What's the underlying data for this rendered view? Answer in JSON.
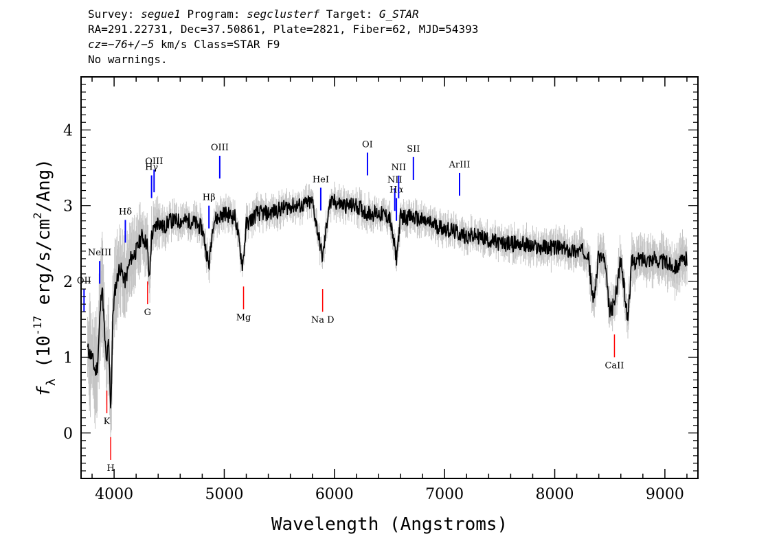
{
  "header": {
    "line1": {
      "survey_label": "Survey: ",
      "survey": "segue1",
      "program_label": " Program: ",
      "program": "segclusterf",
      "target_label": " Target: ",
      "target": "G_STAR"
    },
    "line2": "RA=291.22731, Dec=37.50861, Plate=2821, Fiber=62, MJD=54393",
    "line3": {
      "cz": "cz=−76+/−5",
      "rest": " km/s Class=STAR F9"
    },
    "line4": "No warnings."
  },
  "chart_data": {
    "type": "line",
    "title": "",
    "xlabel": "Wavelength (Angstroms)",
    "ylabel": "f_λ (10^-17 erg/s/cm²/Ang)",
    "xlim": [
      3700,
      9300
    ],
    "ylim": [
      -0.6,
      4.7
    ],
    "x_ticks": [
      4000,
      5000,
      6000,
      7000,
      8000,
      9000
    ],
    "y_ticks": [
      0,
      1,
      2,
      3,
      4
    ],
    "colors": {
      "flux": "#000000",
      "error_band": "#c4c4c4",
      "emission": "#0000ff",
      "absorption": "#ff0000"
    },
    "series": [
      {
        "name": "flux",
        "x": [
          3760,
          3800,
          3830,
          3850,
          3870,
          3890,
          3910,
          3930,
          3950,
          3970,
          3990,
          4010,
          4050,
          4100,
          4150,
          4200,
          4250,
          4300,
          4320,
          4340,
          4400,
          4450,
          4500,
          4600,
          4700,
          4800,
          4861,
          4900,
          5000,
          5100,
          5167,
          5200,
          5300,
          5400,
          5500,
          5600,
          5700,
          5800,
          5893,
          5950,
          6000,
          6100,
          6200,
          6300,
          6400,
          6500,
          6563,
          6600,
          6700,
          6800,
          6900,
          7000,
          7100,
          7200,
          7300,
          7400,
          7500,
          7600,
          7700,
          7800,
          7900,
          8000,
          8100,
          8200,
          8300,
          8350,
          8400,
          8450,
          8498,
          8542,
          8600,
          8662,
          8700,
          8800,
          8900,
          9000,
          9100,
          9200
        ],
        "y": [
          1.1,
          1.0,
          0.8,
          0.9,
          1.5,
          2.0,
          1.4,
          0.9,
          1.2,
          0.3,
          1.6,
          1.9,
          2.2,
          2.0,
          2.3,
          2.4,
          2.6,
          2.5,
          2.0,
          2.6,
          2.8,
          2.7,
          2.8,
          2.8,
          2.8,
          2.7,
          2.2,
          2.8,
          2.9,
          2.85,
          2.2,
          2.75,
          2.9,
          2.9,
          2.95,
          3.0,
          3.0,
          3.05,
          2.3,
          3.0,
          3.05,
          3.0,
          3.0,
          2.9,
          2.9,
          2.85,
          2.3,
          2.85,
          2.85,
          2.8,
          2.75,
          2.7,
          2.65,
          2.6,
          2.6,
          2.55,
          2.5,
          2.5,
          2.5,
          2.45,
          2.45,
          2.45,
          2.42,
          2.4,
          2.4,
          1.7,
          2.35,
          2.3,
          1.6,
          1.7,
          2.3,
          1.5,
          2.25,
          2.3,
          2.3,
          2.25,
          2.2,
          2.3
        ]
      },
      {
        "name": "error",
        "x": [
          3760,
          4000,
          4500,
          5000,
          5500,
          6000,
          6500,
          7000,
          7500,
          8000,
          8500,
          9000,
          9200
        ],
        "y": [
          0.45,
          0.35,
          0.12,
          0.1,
          0.1,
          0.1,
          0.1,
          0.1,
          0.1,
          0.12,
          0.15,
          0.18,
          0.2
        ]
      }
    ],
    "annotations": [
      {
        "label": "Hγ",
        "x": 4340,
        "type": "emission"
      },
      {
        "label": "Hδ",
        "x": 4102,
        "type": "emission"
      },
      {
        "label": "NeIII",
        "x": 3869,
        "type": "emission"
      },
      {
        "label": "OII",
        "x": 3727,
        "type": "emission"
      },
      {
        "label": "OIII",
        "x": 4363,
        "type": "emission"
      },
      {
        "label": "Hβ",
        "x": 4861,
        "type": "emission"
      },
      {
        "label": "OIII",
        "x": 4959,
        "type": "emission"
      },
      {
        "label": "HeI",
        "x": 5876,
        "type": "emission"
      },
      {
        "label": "OI",
        "x": 6300,
        "type": "emission"
      },
      {
        "label": "NII",
        "x": 6548,
        "type": "emission"
      },
      {
        "label": "Hα",
        "x": 6563,
        "type": "emission"
      },
      {
        "label": "NII",
        "x": 6583,
        "type": "emission"
      },
      {
        "label": "SII",
        "x": 6717,
        "type": "emission"
      },
      {
        "label": "ArIII",
        "x": 7136,
        "type": "emission"
      },
      {
        "label": "K",
        "x": 3934,
        "type": "absorption"
      },
      {
        "label": "H",
        "x": 3969,
        "type": "absorption"
      },
      {
        "label": "G",
        "x": 4304,
        "type": "absorption"
      },
      {
        "label": "Mg",
        "x": 5175,
        "type": "absorption"
      },
      {
        "label": "Na D",
        "x": 5893,
        "type": "absorption"
      },
      {
        "label": "CaII",
        "x": 8542,
        "type": "absorption"
      }
    ]
  }
}
